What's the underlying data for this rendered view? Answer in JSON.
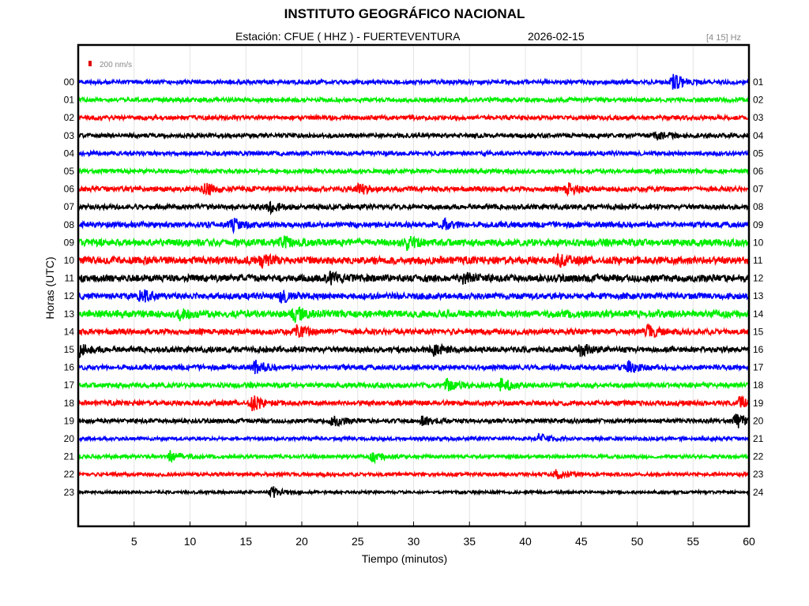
{
  "header": {
    "title": "INSTITUTO GEOGRÁFICO NACIONAL",
    "station": "Estación:  CFUE ( HHZ ) - FUERTEVENTURA",
    "date": "2026-02-15",
    "band": "[4 15] Hz"
  },
  "chart_data": {
    "type": "line",
    "title": "INSTITUTO GEOGRÁFICO NACIONAL",
    "xlabel": "Tiempo (minutos)",
    "ylabel": "Horas (UTC)",
    "xlim": [
      0,
      60
    ],
    "x_ticks": [
      5,
      10,
      15,
      20,
      25,
      30,
      35,
      40,
      45,
      50,
      55,
      60
    ],
    "grid": true,
    "scale_legend": "200 nm/s",
    "scale_color": "#e00000",
    "left_hour_labels": [
      "00",
      "01",
      "02",
      "03",
      "04",
      "05",
      "06",
      "07",
      "08",
      "09",
      "10",
      "11",
      "12",
      "13",
      "14",
      "15",
      "16",
      "17",
      "18",
      "19",
      "20",
      "21",
      "22",
      "23"
    ],
    "right_hour_labels": [
      "01",
      "02",
      "03",
      "04",
      "05",
      "06",
      "07",
      "08",
      "09",
      "10",
      "11",
      "12",
      "13",
      "14",
      "15",
      "16",
      "17",
      "18",
      "19",
      "20",
      "21",
      "22",
      "23",
      "24"
    ],
    "trace_colors": [
      "#0000ff",
      "#00ee00",
      "#ff0000",
      "#000000"
    ],
    "trace_noise_level": [
      0.6,
      0.6,
      0.6,
      0.6,
      0.6,
      0.6,
      0.7,
      0.7,
      0.8,
      1.0,
      1.1,
      1.0,
      0.9,
      1.0,
      0.8,
      0.8,
      0.7,
      0.7,
      0.7,
      0.6,
      0.5,
      0.5,
      0.5,
      0.4
    ],
    "events": [
      {
        "hour": 0,
        "minute": 53.3,
        "amp": 2.2
      },
      {
        "hour": 3,
        "minute": 51.8,
        "amp": 1.3
      },
      {
        "hour": 6,
        "minute": 11.4,
        "amp": 2.0
      },
      {
        "hour": 6,
        "minute": 25.2,
        "amp": 1.6
      },
      {
        "hour": 6,
        "minute": 43.8,
        "amp": 1.6
      },
      {
        "hour": 7,
        "minute": 17.2,
        "amp": 1.6
      },
      {
        "hour": 8,
        "minute": 13.7,
        "amp": 1.8
      },
      {
        "hour": 8,
        "minute": 32.8,
        "amp": 1.5
      },
      {
        "hour": 9,
        "minute": 18.2,
        "amp": 1.5
      },
      {
        "hour": 9,
        "minute": 29.5,
        "amp": 1.6
      },
      {
        "hour": 10,
        "minute": 16.5,
        "amp": 1.5
      },
      {
        "hour": 10,
        "minute": 43.0,
        "amp": 1.5
      },
      {
        "hour": 11,
        "minute": 22.5,
        "amp": 1.5
      },
      {
        "hour": 11,
        "minute": 34.5,
        "amp": 1.6
      },
      {
        "hour": 12,
        "minute": 5.6,
        "amp": 1.8
      },
      {
        "hour": 12,
        "minute": 18.2,
        "amp": 1.7
      },
      {
        "hour": 13,
        "minute": 9.2,
        "amp": 1.6
      },
      {
        "hour": 13,
        "minute": 19.4,
        "amp": 1.8
      },
      {
        "hour": 14,
        "minute": 19.6,
        "amp": 1.6
      },
      {
        "hour": 14,
        "minute": 51.0,
        "amp": 1.6
      },
      {
        "hour": 15,
        "minute": 0.2,
        "amp": 1.7
      },
      {
        "hour": 15,
        "minute": 31.8,
        "amp": 1.5
      },
      {
        "hour": 15,
        "minute": 45.0,
        "amp": 1.6
      },
      {
        "hour": 16,
        "minute": 15.9,
        "amp": 1.8
      },
      {
        "hour": 16,
        "minute": 49.3,
        "amp": 1.6
      },
      {
        "hour": 17,
        "minute": 33.0,
        "amp": 1.5
      },
      {
        "hour": 17,
        "minute": 37.9,
        "amp": 1.9
      },
      {
        "hour": 18,
        "minute": 15.6,
        "amp": 2.2
      },
      {
        "hour": 18,
        "minute": 59.2,
        "amp": 1.5
      },
      {
        "hour": 19,
        "minute": 22.8,
        "amp": 1.5
      },
      {
        "hour": 19,
        "minute": 30.8,
        "amp": 1.5
      },
      {
        "hour": 19,
        "minute": 58.9,
        "amp": 2.0
      },
      {
        "hour": 20,
        "minute": 41.2,
        "amp": 1.4
      },
      {
        "hour": 21,
        "minute": 8.3,
        "amp": 1.6
      },
      {
        "hour": 21,
        "minute": 26.4,
        "amp": 1.5
      },
      {
        "hour": 22,
        "minute": 42.8,
        "amp": 1.5
      },
      {
        "hour": 23,
        "minute": 17.4,
        "amp": 1.6
      }
    ]
  }
}
